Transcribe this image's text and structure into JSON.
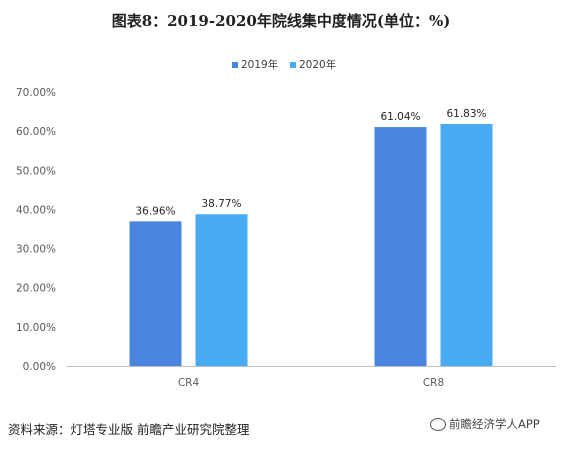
{
  "chart_data": {
    "type": "bar",
    "title": "图表8：2019-2020年院线集中度情况(单位：%)",
    "categories": [
      "CR4",
      "CR8"
    ],
    "series": [
      {
        "name": "2019年",
        "values": [
          36.96,
          61.04
        ],
        "color": "#4a86e0"
      },
      {
        "name": "2020年",
        "values": [
          38.77,
          61.83
        ],
        "color": "#48aaf0"
      }
    ],
    "data_labels": [
      [
        "36.96%",
        "61.04%"
      ],
      [
        "38.77%",
        "61.83%"
      ]
    ],
    "ylim": [
      0,
      70
    ],
    "yticks": [
      "0.00%",
      "10.00%",
      "20.00%",
      "30.00%",
      "40.00%",
      "50.00%",
      "60.00%",
      "70.00%"
    ],
    "grid": false,
    "legend_position": "top-center"
  },
  "source": "资料来源：灯塔专业版 前瞻产业研究院整理",
  "watermark": "前瞻经济学人APP"
}
